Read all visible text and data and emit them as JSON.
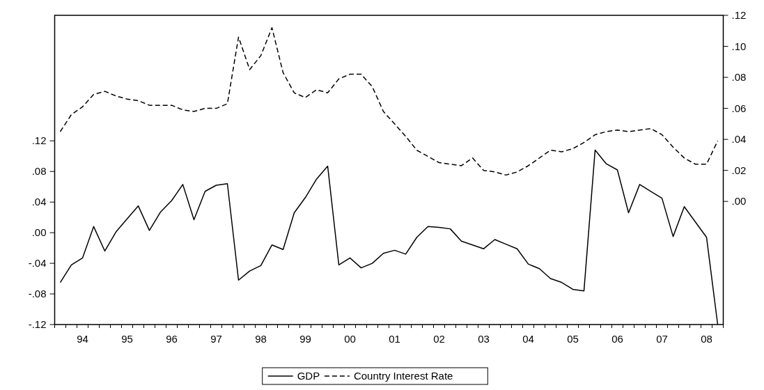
{
  "chart_data": {
    "type": "line",
    "categories": [
      null,
      null,
      "94",
      null,
      null,
      null,
      "95",
      null,
      null,
      null,
      "96",
      null,
      null,
      null,
      "97",
      null,
      null,
      null,
      "98",
      null,
      null,
      null,
      "99",
      null,
      null,
      null,
      "00",
      null,
      null,
      null,
      "01",
      null,
      null,
      null,
      "02",
      null,
      null,
      null,
      "03",
      null,
      null,
      null,
      "04",
      null,
      null,
      null,
      "05",
      null,
      null,
      null,
      "06",
      null,
      null,
      null,
      "07",
      null,
      null,
      null,
      "08",
      null
    ],
    "ylim": [
      -0.12,
      0.284
    ],
    "yticks": [
      {
        "value": -0.12,
        "label": "-.12"
      },
      {
        "value": -0.08,
        "label": "-.08"
      },
      {
        "value": -0.04,
        "label": "-.04"
      },
      {
        "value": 0,
        "label": ".00"
      },
      {
        "value": 0.04,
        "label": ".04"
      },
      {
        "value": 0.08,
        "label": ".08"
      },
      {
        "value": 0.12,
        "label": ".12"
      }
    ],
    "y2lim": [
      -0.0794,
      0.12
    ],
    "y2ticks": [
      {
        "value": 0,
        "label": ".00"
      },
      {
        "value": 0.02,
        "label": ".02"
      },
      {
        "value": 0.04,
        "label": ".04"
      },
      {
        "value": 0.06,
        "label": ".06"
      },
      {
        "value": 0.08,
        "label": ".08"
      },
      {
        "value": 0.1,
        "label": ".10"
      },
      {
        "value": 0.12,
        "label": ".12"
      }
    ],
    "legend": "bottom",
    "series": [
      {
        "name": "GDP",
        "color": "#000000",
        "line_style": "solid",
        "axis": "y",
        "values": [
          -0.065,
          -0.042,
          -0.033,
          0.008,
          -0.024,
          0.001,
          0.018,
          0.035,
          0.003,
          0.027,
          0.042,
          0.063,
          0.017,
          0.054,
          0.062,
          0.064,
          -0.062,
          -0.05,
          -0.043,
          -0.016,
          -0.022,
          0.026,
          0.046,
          0.07,
          0.087,
          -0.042,
          -0.033,
          -0.046,
          -0.04,
          -0.027,
          -0.023,
          -0.028,
          -0.006,
          0.008,
          0.007,
          0.005,
          -0.011,
          -0.016,
          -0.021,
          -0.009,
          -0.015,
          -0.021,
          -0.041,
          -0.047,
          -0.06,
          -0.065,
          -0.074,
          -0.076,
          0.108,
          0.09,
          0.082,
          0.026,
          0.063,
          0.054,
          0.045,
          -0.005,
          0.034,
          0.014,
          -0.006,
          -0.12
        ]
      },
      {
        "name": "Country Interest Rate",
        "color": "#000000",
        "line_style": "dashed",
        "axis": "y2",
        "values": [
          0.045,
          0.056,
          0.061,
          0.069,
          0.071,
          0.068,
          0.066,
          0.065,
          0.062,
          0.062,
          0.062,
          0.059,
          0.058,
          0.06,
          0.06,
          0.063,
          0.106,
          0.085,
          0.094,
          0.112,
          0.083,
          0.07,
          0.067,
          0.072,
          0.07,
          0.079,
          0.082,
          0.082,
          0.074,
          0.058,
          0.05,
          0.042,
          0.033,
          0.029,
          0.025,
          0.024,
          0.023,
          0.028,
          0.02,
          0.019,
          0.017,
          0.019,
          0.023,
          0.028,
          0.033,
          0.032,
          0.034,
          0.038,
          0.043,
          0.045,
          0.046,
          0.045,
          0.046,
          0.047,
          0.043,
          0.035,
          0.028,
          0.024,
          0.024,
          0.039
        ]
      }
    ]
  }
}
